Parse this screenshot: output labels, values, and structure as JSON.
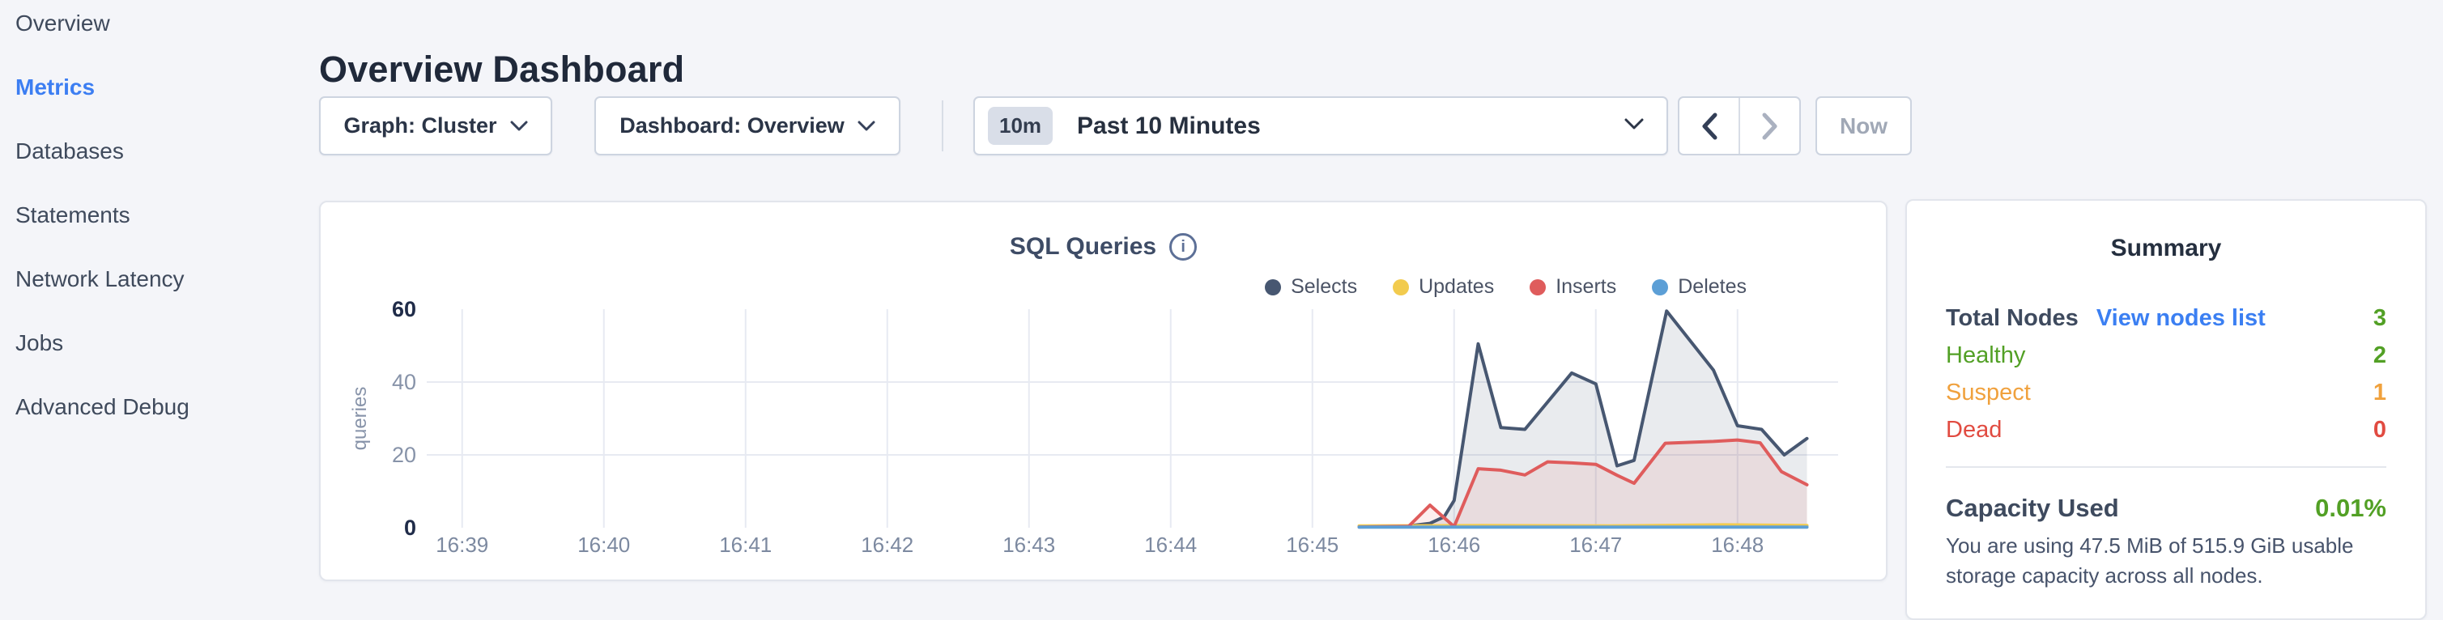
{
  "sidebar": {
    "items": [
      {
        "label": "Overview",
        "active": false
      },
      {
        "label": "Metrics",
        "active": true
      },
      {
        "label": "Databases",
        "active": false
      },
      {
        "label": "Statements",
        "active": false
      },
      {
        "label": "Network Latency",
        "active": false
      },
      {
        "label": "Jobs",
        "active": false
      },
      {
        "label": "Advanced Debug",
        "active": false
      }
    ]
  },
  "header": {
    "title": "Overview Dashboard"
  },
  "toolbar": {
    "graph_label": "Graph: Cluster",
    "dashboard_label": "Dashboard: Overview",
    "time_badge": "10m",
    "time_label": "Past 10 Minutes",
    "now_label": "Now"
  },
  "chart_card": {
    "title": "SQL Queries"
  },
  "chart_data": {
    "type": "area",
    "title": "SQL Queries",
    "ylabel": "queries",
    "grid": true,
    "legend_position": "top-right",
    "x_unit": "time (HH:MM, minutes after 16:00 as numeric pos)",
    "x_domain": [
      38.75,
      48.71
    ],
    "ylim": [
      0,
      60
    ],
    "x_ticks": [
      {
        "pos": 39,
        "label": "16:39"
      },
      {
        "pos": 40,
        "label": "16:40"
      },
      {
        "pos": 41,
        "label": "16:41"
      },
      {
        "pos": 42,
        "label": "16:42"
      },
      {
        "pos": 43,
        "label": "16:43"
      },
      {
        "pos": 44,
        "label": "16:44"
      },
      {
        "pos": 45,
        "label": "16:45"
      },
      {
        "pos": 46,
        "label": "16:46"
      },
      {
        "pos": 47,
        "label": "16:47"
      },
      {
        "pos": 48,
        "label": "16:48"
      }
    ],
    "y_ticks": [
      {
        "pos": 0,
        "label": "0",
        "major": true,
        "gridline": false
      },
      {
        "pos": 20,
        "label": "20",
        "major": false,
        "gridline": true
      },
      {
        "pos": 40,
        "label": "40",
        "major": false,
        "gridline": true
      },
      {
        "pos": 60,
        "label": "60",
        "major": true,
        "gridline": false
      }
    ],
    "series": [
      {
        "name": "Selects",
        "color": "#475771",
        "fill": "rgba(71,87,113,0.12)",
        "points": [
          [
            45.33,
            0.3
          ],
          [
            45.66,
            0.4
          ],
          [
            45.83,
            1.2
          ],
          [
            45.93,
            3.0
          ],
          [
            46.0,
            7.5
          ],
          [
            46.17,
            50.5
          ],
          [
            46.33,
            27.5
          ],
          [
            46.5,
            27.0
          ],
          [
            46.83,
            42.5
          ],
          [
            47.0,
            39.5
          ],
          [
            47.15,
            17.0
          ],
          [
            47.27,
            18.5
          ],
          [
            47.5,
            59.5
          ],
          [
            47.83,
            43.3
          ],
          [
            48.0,
            28.0
          ],
          [
            48.17,
            27.0
          ],
          [
            48.33,
            20.0
          ],
          [
            48.49,
            24.5
          ]
        ]
      },
      {
        "name": "Updates",
        "color": "#f2cb4e",
        "fill": "none",
        "points": [
          [
            45.33,
            0.5
          ],
          [
            46.2,
            0.6
          ],
          [
            47.1,
            0.5
          ],
          [
            47.9,
            0.8
          ],
          [
            48.49,
            0.6
          ]
        ]
      },
      {
        "name": "Inserts",
        "color": "#df5c5c",
        "fill": "rgba(223,92,92,0.10)",
        "points": [
          [
            45.33,
            0.2
          ],
          [
            45.68,
            0.4
          ],
          [
            45.83,
            6.2
          ],
          [
            46.0,
            0.3
          ],
          [
            46.17,
            16.2
          ],
          [
            46.33,
            15.8
          ],
          [
            46.5,
            14.5
          ],
          [
            46.66,
            18.1
          ],
          [
            46.83,
            17.8
          ],
          [
            47.0,
            17.4
          ],
          [
            47.15,
            14.4
          ],
          [
            47.27,
            12.2
          ],
          [
            47.49,
            23.2
          ],
          [
            47.83,
            23.7
          ],
          [
            48.0,
            24.1
          ],
          [
            48.16,
            23.3
          ],
          [
            48.31,
            15.4
          ],
          [
            48.49,
            11.8
          ]
        ]
      },
      {
        "name": "Deletes",
        "color": "#5c9fd6",
        "fill": "none",
        "points": [
          [
            45.33,
            0.15
          ],
          [
            48.49,
            0.15
          ]
        ]
      }
    ]
  },
  "summary": {
    "title": "Summary",
    "rows": [
      {
        "label": "Total Nodes",
        "link": "View nodes list",
        "value": "3",
        "label_color": "#3e4a5e",
        "value_color": "#52a025"
      },
      {
        "label": "Healthy",
        "value": "2",
        "label_color": "#52a025",
        "value_color": "#52a025"
      },
      {
        "label": "Suspect",
        "value": "1",
        "label_color": "#f0a13d",
        "value_color": "#f0a13d"
      },
      {
        "label": "Dead",
        "value": "0",
        "label_color": "#e14b41",
        "value_color": "#e14b41"
      }
    ],
    "capacity": {
      "label": "Capacity Used",
      "value": "0.01%",
      "value_color": "#52a025",
      "description": "You are using 47.5 MiB of 515.9 GiB usable storage capacity across all nodes."
    }
  },
  "colors": {
    "page_bg": "#f4f5f9",
    "accent_blue": "#3c7ef2",
    "grid": "#e7eaf2"
  }
}
